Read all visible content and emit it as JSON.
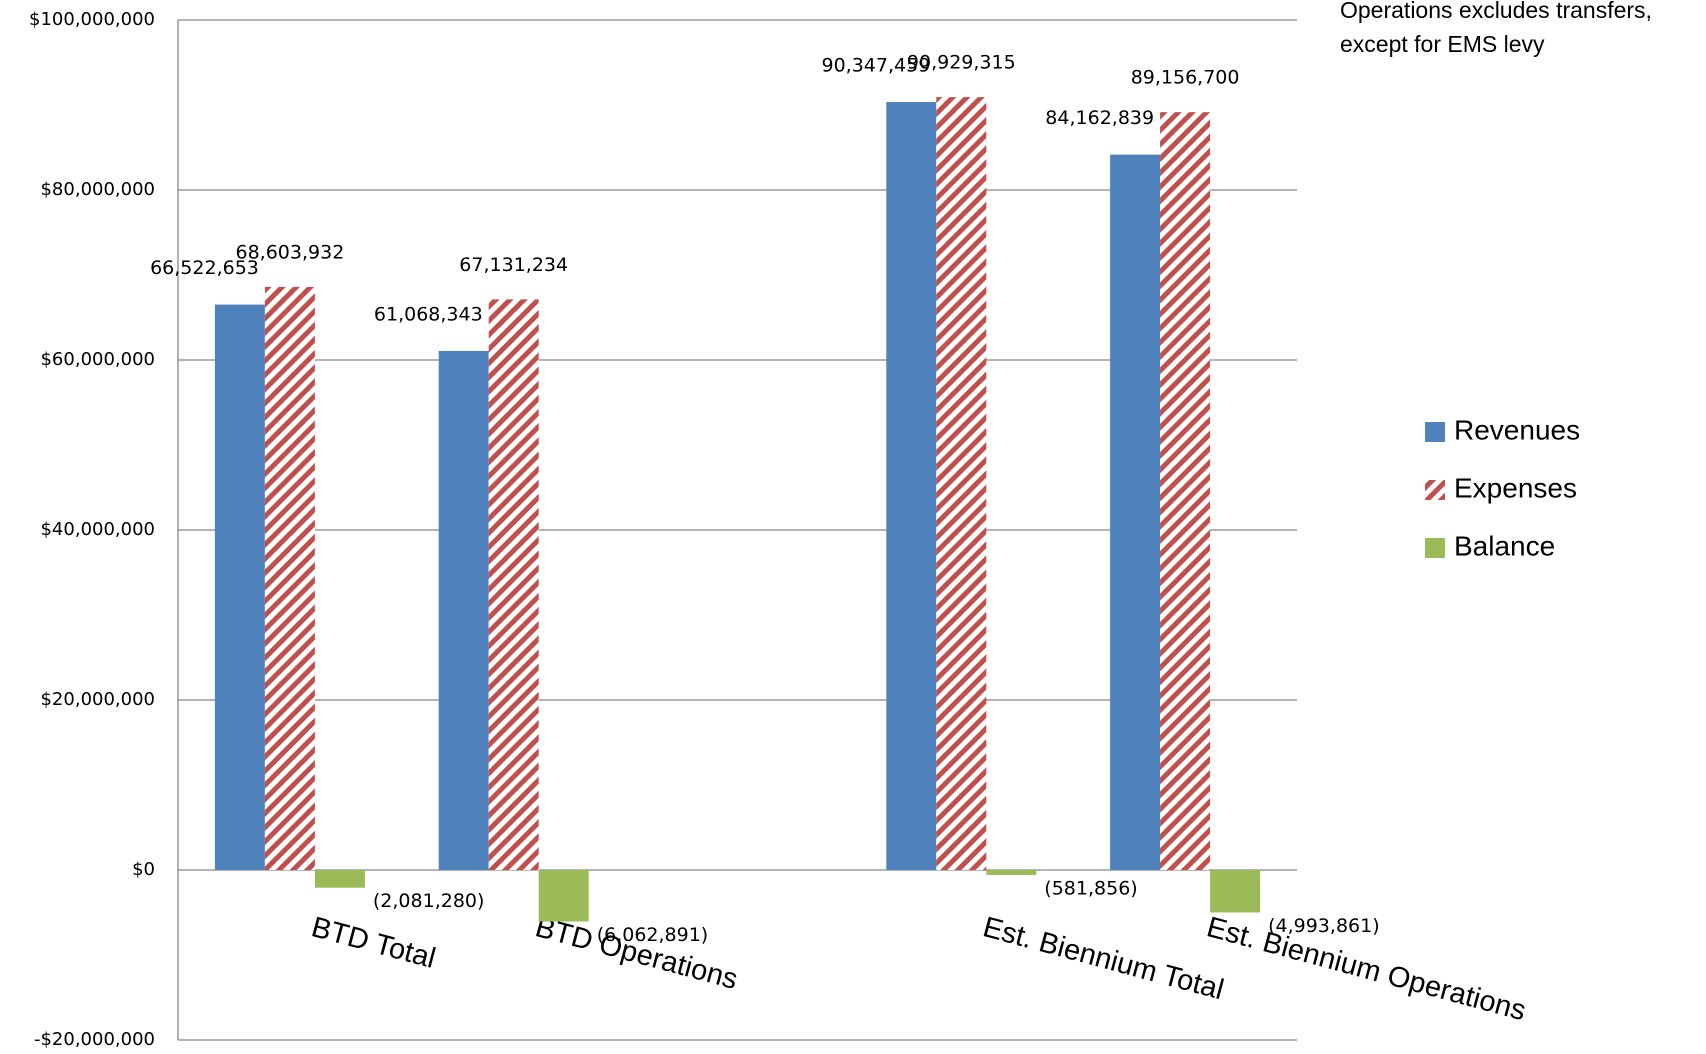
{
  "chart_data": {
    "type": "bar",
    "annotation": [
      "Operations excludes transfers,",
      "except for EMS levy"
    ],
    "categories": [
      "BTD Total",
      "BTD Operations",
      null,
      "Est. Biennium Total",
      "Est. Biennium Operations"
    ],
    "series": [
      {
        "name": "Revenues",
        "color": "#4f81bd",
        "values": [
          66522653,
          61068343,
          null,
          90347459,
          84162839
        ],
        "value_labels": [
          "66,522,653",
          "61,068,343",
          null,
          "90,347,459",
          "84,162,839"
        ]
      },
      {
        "name": "Expenses",
        "color": "#c0504d",
        "pattern": "stripes",
        "values": [
          68603932,
          67131234,
          null,
          90929315,
          89156700
        ],
        "value_labels": [
          "68,603,932",
          "67,131,234",
          null,
          "90,929,315",
          "89,156,700"
        ]
      },
      {
        "name": "Balance",
        "color": "#9bbb59",
        "values": [
          -2081280,
          -6062891,
          null,
          -581856,
          -4993861
        ],
        "value_labels": [
          "(2,081,280)",
          "(6,062,891)",
          null,
          "(581,856)",
          "(4,993,861)"
        ]
      }
    ],
    "ylim": [
      -20000000,
      100000000
    ],
    "yticks": [
      {
        "value": -20000000,
        "label": "-$20,000,000"
      },
      {
        "value": 0,
        "label": "$0"
      },
      {
        "value": 20000000,
        "label": "$20,000,000"
      },
      {
        "value": 40000000,
        "label": "$40,000,000"
      },
      {
        "value": 60000000,
        "label": "$60,000,000"
      },
      {
        "value": 80000000,
        "label": "$80,000,000"
      },
      {
        "value": 100000000,
        "label": "$100,000,000"
      }
    ],
    "grid": true,
    "legend": "right"
  }
}
